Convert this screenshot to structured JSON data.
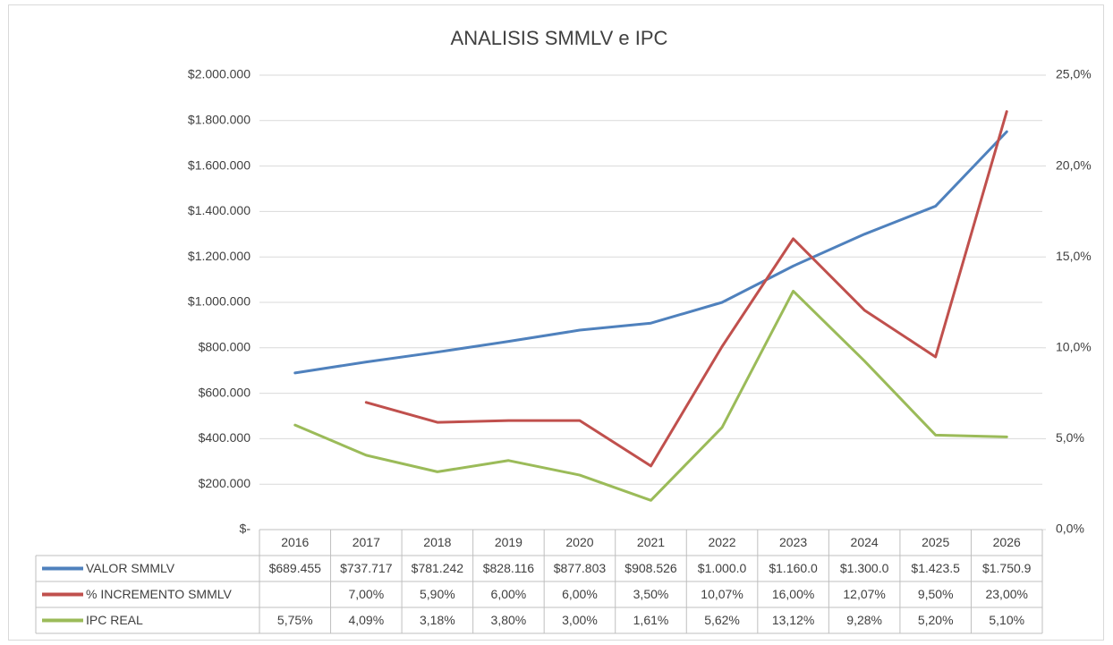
{
  "chart_data": {
    "type": "line",
    "title": "ANALISIS SMMLV e IPC",
    "categories": [
      "2016",
      "2017",
      "2018",
      "2019",
      "2020",
      "2021",
      "2022",
      "2023",
      "2024",
      "2025",
      "2026"
    ],
    "series": [
      {
        "name": "VALOR SMMLV",
        "color": "#4f81bd",
        "axis": "y",
        "values": [
          689455,
          737717,
          781242,
          828116,
          877803,
          908526,
          1000000,
          1160000,
          1300000,
          1423500,
          1750905
        ],
        "value_labels": [
          "$689.455",
          "$737.717",
          "$781.242",
          "$828.116",
          "$877.803",
          "$908.526",
          "$1.000.0",
          "$1.160.0",
          "$1.300.0",
          "$1.423.5",
          "$1.750.9"
        ]
      },
      {
        "name": "% INCREMENTO SMMLV",
        "color": "#c0504d",
        "axis": "y2",
        "values": [
          null,
          7.0,
          5.9,
          6.0,
          6.0,
          3.5,
          10.07,
          16.0,
          12.07,
          9.5,
          23.0
        ],
        "value_labels": [
          null,
          "7,00%",
          "5,90%",
          "6,00%",
          "6,00%",
          "3,50%",
          "10,07%",
          "16,00%",
          "12,07%",
          "9,50%",
          "23,00%"
        ]
      },
      {
        "name": "IPC REAL",
        "color": "#9bbb59",
        "axis": "y2",
        "values": [
          5.75,
          4.09,
          3.18,
          3.8,
          3.0,
          1.61,
          5.62,
          13.12,
          9.28,
          5.2,
          5.1
        ],
        "value_labels": [
          "5,75%",
          "4,09%",
          "3,18%",
          "3,80%",
          "3,00%",
          "1,61%",
          "5,62%",
          "13,12%",
          "9,28%",
          "5,20%",
          "5,10%"
        ]
      }
    ],
    "ylim": [
      0,
      2000000
    ],
    "yticks": [
      {
        "value": 0,
        "label": "$-"
      },
      {
        "value": 200000,
        "label": "$200.000"
      },
      {
        "value": 400000,
        "label": "$400.000"
      },
      {
        "value": 600000,
        "label": "$600.000"
      },
      {
        "value": 800000,
        "label": "$800.000"
      },
      {
        "value": 1000000,
        "label": "$1.000.000"
      },
      {
        "value": 1200000,
        "label": "$1.200.000"
      },
      {
        "value": 1400000,
        "label": "$1.400.000"
      },
      {
        "value": 1600000,
        "label": "$1.600.000"
      },
      {
        "value": 1800000,
        "label": "$1.800.000"
      },
      {
        "value": 2000000,
        "label": "$2.000.000"
      }
    ],
    "y2lim": [
      0,
      25
    ],
    "y2ticks": [
      {
        "value": 0,
        "label": "0,0%"
      },
      {
        "value": 5,
        "label": "5,0%"
      },
      {
        "value": 10,
        "label": "10,0%"
      },
      {
        "value": 15,
        "label": "15,0%"
      },
      {
        "value": 20,
        "label": "20,0%"
      },
      {
        "value": 25,
        "label": "25,0%"
      }
    ],
    "grid": true,
    "data_table": true
  }
}
